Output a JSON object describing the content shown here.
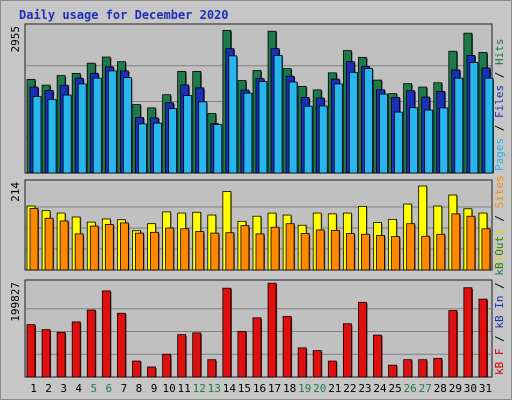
{
  "chart_data": {
    "title": "Daily usage for December 2020",
    "days": [
      "1",
      "2",
      "3",
      "4",
      "5",
      "6",
      "7",
      "8",
      "9",
      "10",
      "11",
      "12",
      "13",
      "14",
      "15",
      "16",
      "17",
      "18",
      "19",
      "20",
      "21",
      "22",
      "23",
      "24",
      "25",
      "26",
      "27",
      "28",
      "29",
      "30",
      "31"
    ],
    "weekend_days": [
      "5",
      "6",
      "12",
      "13",
      "19",
      "20",
      "26",
      "27"
    ],
    "panels": [
      {
        "type": "bar",
        "max_label": "2955",
        "ymax": 2955,
        "legend": [
          {
            "text": "Pages",
            "color": "#27b6ee"
          },
          {
            "text": " / ",
            "color": "#000000"
          },
          {
            "text": "Files",
            "color": "#1c2fb8"
          },
          {
            "text": " / ",
            "color": "#000000"
          },
          {
            "text": "Hits",
            "color": "#1f7a4a"
          }
        ],
        "series": [
          {
            "name": "Hits",
            "color": "#1f7a4a",
            "values": [
              1933,
              1816,
              2013,
              2058,
              2269,
              2396,
              2300,
              1415,
              1346,
              1618,
              2100,
              2100,
              1230,
              2946,
              1911,
              2118,
              2930,
              2158,
              1790,
              1718,
              2070,
              2530,
              2390,
              1920,
              1640,
              1846,
              1776,
              1865,
              2516,
              2889,
              2490
            ]
          },
          {
            "name": "Files",
            "color": "#1c2fb8",
            "values": [
              1776,
              1705,
              1815,
              1960,
              2060,
              2194,
              2110,
              1146,
              1138,
              1450,
              1820,
              1760,
              1020,
              2570,
              1715,
              1950,
              2570,
              2000,
              1560,
              1550,
              1940,
              2300,
              2200,
              1720,
              1560,
              1700,
              1568,
              1686,
              2130,
              2430,
              2170
            ]
          },
          {
            "name": "Pages",
            "color": "#27b6ee",
            "values": [
              1580,
              1520,
              1610,
              1840,
              1960,
              2110,
              1970,
              1015,
              1030,
              1330,
              1600,
              1470,
              1000,
              2420,
              1650,
              1890,
              2430,
              1880,
              1380,
              1385,
              1840,
              2080,
              2158,
              1630,
              1257,
              1350,
              1300,
              1345,
              1960,
              2285,
              1960
            ]
          }
        ]
      },
      {
        "type": "bar",
        "max_label": "214",
        "ymax": 214,
        "legend": [
          {
            "text": "Visits",
            "color": "#d8d800"
          },
          {
            "text": " / ",
            "color": "#000000"
          },
          {
            "text": "Sites",
            "color": "#ff8800"
          }
        ],
        "series": [
          {
            "name": "Visits",
            "color": "#ffff00",
            "values": [
              163,
              151,
              145,
              135,
              122,
              130,
              128,
              100,
              118,
              148,
              145,
              147,
              140,
              200,
              124,
              137,
              145,
              140,
              114,
              145,
              143,
              145,
              162,
              121,
              129,
              168,
              214,
              163,
              191,
              156,
              145
            ]
          },
          {
            "name": "Sites",
            "color": "#ff8800",
            "values": [
              157,
              132,
              125,
              92,
              112,
              116,
              120,
              94,
              96,
              107,
              105,
              98,
              94,
              95,
              113,
              92,
              109,
              118,
              93,
              102,
              101,
              93,
              91,
              88,
              85,
              118,
              86,
              91,
              143,
              137,
              105
            ]
          }
        ]
      },
      {
        "type": "bar",
        "max_label": "199827",
        "ymax": 199827,
        "legend": [
          {
            "text": "kB F",
            "color": "#d00000"
          },
          {
            "text": " / ",
            "color": "#000000"
          },
          {
            "text": "kB In",
            "color": "#1c2fb8"
          },
          {
            "text": " / ",
            "color": "#000000"
          },
          {
            "text": "kB Out",
            "color": "#1f7a4a"
          }
        ],
        "series": [
          {
            "name": "kB F",
            "color": "#e01010",
            "values": [
              115000,
              104000,
              98000,
              121000,
              147000,
              189000,
              140000,
              35000,
              22000,
              50000,
              93000,
              97000,
              38000,
              195000,
              100000,
              130000,
              206000,
              133000,
              64000,
              58000,
              35000,
              117000,
              164000,
              92000,
              26000,
              38000,
              38000,
              41000,
              146000,
              196000,
              171000
            ]
          }
        ]
      }
    ]
  }
}
